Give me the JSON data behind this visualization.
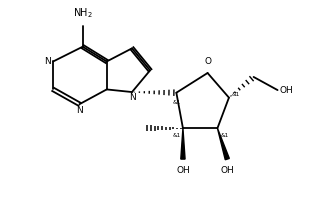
{
  "bg_color": "#ffffff",
  "line_color": "#000000",
  "text_color": "#000000",
  "figsize": [
    3.33,
    2.15
  ],
  "dpi": 100,
  "xlim": [
    0,
    10
  ],
  "ylim": [
    0,
    6.5
  ]
}
